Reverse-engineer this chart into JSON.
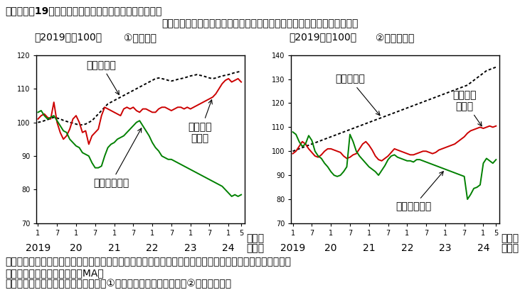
{
  "title": "第３－２－19図　既存住宅販売量と新設住宅着工の推移",
  "subtitle": "建築費の上昇の中で、既存住宅販売量は戸建・マンションともに増加傾向",
  "chart1_title": "①戸建住宅",
  "chart2_title": "②マンション",
  "unit_label": "（2019年＝100）",
  "footnote1": "（備考）　１．国土交通省「不動産価格指数」、「既存住宅販売量指数」、「住宅着工統計」により作成。",
  "footnote2": "　　　　　　季節調整値。３MA。",
  "footnote3": "　　　　２．新設住宅着工について、①は持家と分譲戸建の合計、②は共同分譲。",
  "xlabel_month": "（月）",
  "xlabel_year": "（年）",
  "chart1_ylim": [
    70,
    120
  ],
  "chart1_yticks": [
    70,
    80,
    90,
    100,
    110,
    120
  ],
  "chart2_ylim": [
    70,
    140
  ],
  "chart2_yticks": [
    70,
    80,
    90,
    100,
    110,
    120,
    130,
    140
  ],
  "color_fudousan": "#000000",
  "color_kizon": "#cc0000",
  "color_shinsetu": "#008000",
  "chart1_fudousan": [
    100.0,
    100.2,
    100.5,
    100.8,
    101.2,
    101.5,
    101.3,
    101.0,
    100.6,
    100.3,
    100.0,
    99.8,
    99.5,
    99.2,
    99.3,
    99.5,
    100.0,
    100.5,
    101.5,
    102.5,
    103.5,
    104.5,
    105.5,
    106.0,
    106.5,
    107.0,
    107.5,
    108.0,
    108.5,
    109.0,
    109.5,
    110.0,
    110.5,
    111.0,
    111.5,
    112.0,
    112.5,
    113.0,
    113.2,
    113.0,
    112.8,
    112.5,
    112.3,
    112.5,
    112.8,
    113.0,
    113.2,
    113.5,
    113.8,
    114.0,
    114.2,
    114.0,
    113.8,
    113.5,
    113.2,
    113.0,
    113.2,
    113.5,
    113.8,
    114.0,
    114.2,
    114.5,
    114.8,
    115.0,
    115.2
  ],
  "chart1_kizon": [
    101.0,
    102.0,
    102.5,
    101.5,
    101.0,
    106.0,
    100.0,
    97.0,
    95.0,
    96.0,
    98.0,
    101.0,
    102.0,
    100.0,
    97.0,
    97.5,
    93.5,
    96.0,
    97.0,
    98.0,
    102.0,
    104.5,
    104.0,
    103.5,
    103.0,
    102.5,
    102.0,
    104.0,
    104.5,
    104.0,
    104.5,
    103.5,
    103.0,
    104.0,
    104.0,
    103.5,
    103.0,
    103.0,
    104.0,
    104.5,
    104.5,
    104.0,
    103.5,
    104.0,
    104.5,
    104.5,
    104.0,
    104.5,
    104.0,
    104.5,
    105.0,
    105.5,
    106.0,
    106.5,
    107.0,
    107.5,
    108.5,
    110.0,
    111.5,
    112.5,
    113.0,
    112.0,
    112.5,
    113.0,
    112.0
  ],
  "chart1_shinsetu": [
    103.0,
    103.5,
    102.0,
    101.0,
    101.5,
    102.0,
    100.5,
    99.0,
    97.5,
    97.0,
    95.0,
    94.0,
    93.0,
    92.5,
    91.0,
    90.5,
    90.0,
    88.0,
    86.5,
    86.5,
    87.0,
    90.0,
    92.5,
    93.5,
    94.0,
    95.0,
    95.5,
    96.0,
    97.0,
    98.0,
    99.0,
    100.0,
    100.5,
    99.0,
    97.5,
    96.0,
    94.0,
    92.5,
    91.5,
    90.0,
    89.5,
    89.0,
    89.0,
    88.5,
    88.0,
    87.5,
    87.0,
    86.5,
    86.0,
    85.5,
    85.0,
    84.5,
    84.0,
    83.5,
    83.0,
    82.5,
    82.0,
    81.5,
    81.0,
    80.0,
    79.0,
    78.0,
    78.5,
    78.0,
    78.5
  ],
  "chart2_fudousan": [
    100.0,
    100.5,
    101.0,
    101.5,
    102.0,
    102.5,
    103.0,
    103.5,
    104.0,
    104.5,
    105.0,
    105.5,
    106.0,
    106.5,
    107.0,
    107.5,
    108.0,
    108.5,
    109.0,
    109.5,
    110.0,
    110.5,
    111.0,
    111.5,
    112.0,
    112.5,
    113.0,
    113.5,
    114.0,
    114.5,
    115.0,
    115.5,
    116.0,
    116.5,
    117.0,
    117.5,
    118.0,
    118.5,
    119.0,
    119.5,
    120.0,
    120.5,
    121.0,
    121.5,
    122.0,
    122.5,
    123.0,
    123.5,
    124.0,
    124.5,
    125.0,
    125.5,
    126.0,
    126.5,
    127.0,
    127.5,
    128.5,
    129.5,
    130.5,
    131.5,
    132.5,
    133.5,
    134.0,
    134.5,
    135.0
  ],
  "chart2_kizon": [
    99.0,
    100.0,
    102.0,
    104.0,
    103.0,
    101.0,
    99.5,
    98.0,
    97.5,
    98.5,
    100.0,
    101.0,
    101.0,
    100.5,
    100.0,
    99.5,
    98.0,
    97.0,
    97.5,
    98.5,
    99.0,
    101.0,
    103.0,
    104.0,
    102.5,
    100.5,
    98.0,
    96.5,
    96.0,
    97.0,
    98.0,
    99.5,
    101.0,
    100.5,
    100.0,
    99.5,
    99.0,
    98.5,
    98.5,
    99.0,
    99.5,
    100.0,
    100.0,
    99.5,
    99.0,
    99.5,
    100.5,
    101.0,
    101.5,
    102.0,
    102.5,
    103.0,
    104.0,
    105.0,
    106.0,
    107.5,
    108.5,
    109.0,
    109.5,
    110.0,
    109.5,
    110.0,
    110.5,
    110.0,
    110.5
  ],
  "chart2_shinsetu": [
    108.0,
    107.0,
    104.0,
    102.0,
    103.0,
    106.5,
    104.5,
    100.0,
    98.0,
    97.0,
    95.0,
    93.5,
    91.5,
    90.0,
    89.5,
    90.0,
    91.5,
    93.5,
    107.0,
    104.0,
    100.0,
    98.0,
    96.5,
    95.0,
    93.5,
    92.5,
    91.5,
    90.0,
    92.0,
    94.0,
    96.5,
    98.0,
    98.5,
    97.5,
    97.0,
    96.5,
    96.0,
    96.0,
    95.5,
    96.5,
    96.5,
    96.0,
    95.5,
    95.0,
    94.5,
    94.0,
    93.5,
    93.0,
    92.5,
    92.0,
    91.5,
    91.0,
    90.5,
    90.0,
    89.5,
    80.0,
    82.0,
    84.5,
    85.0,
    86.0,
    95.0,
    97.0,
    96.0,
    95.0,
    96.5
  ],
  "label_fudousan": "不動産価格",
  "label_kizon1": "既存住宅",
  "label_kizon2": "販売量",
  "label_shinsetu": "新設住宅着工"
}
